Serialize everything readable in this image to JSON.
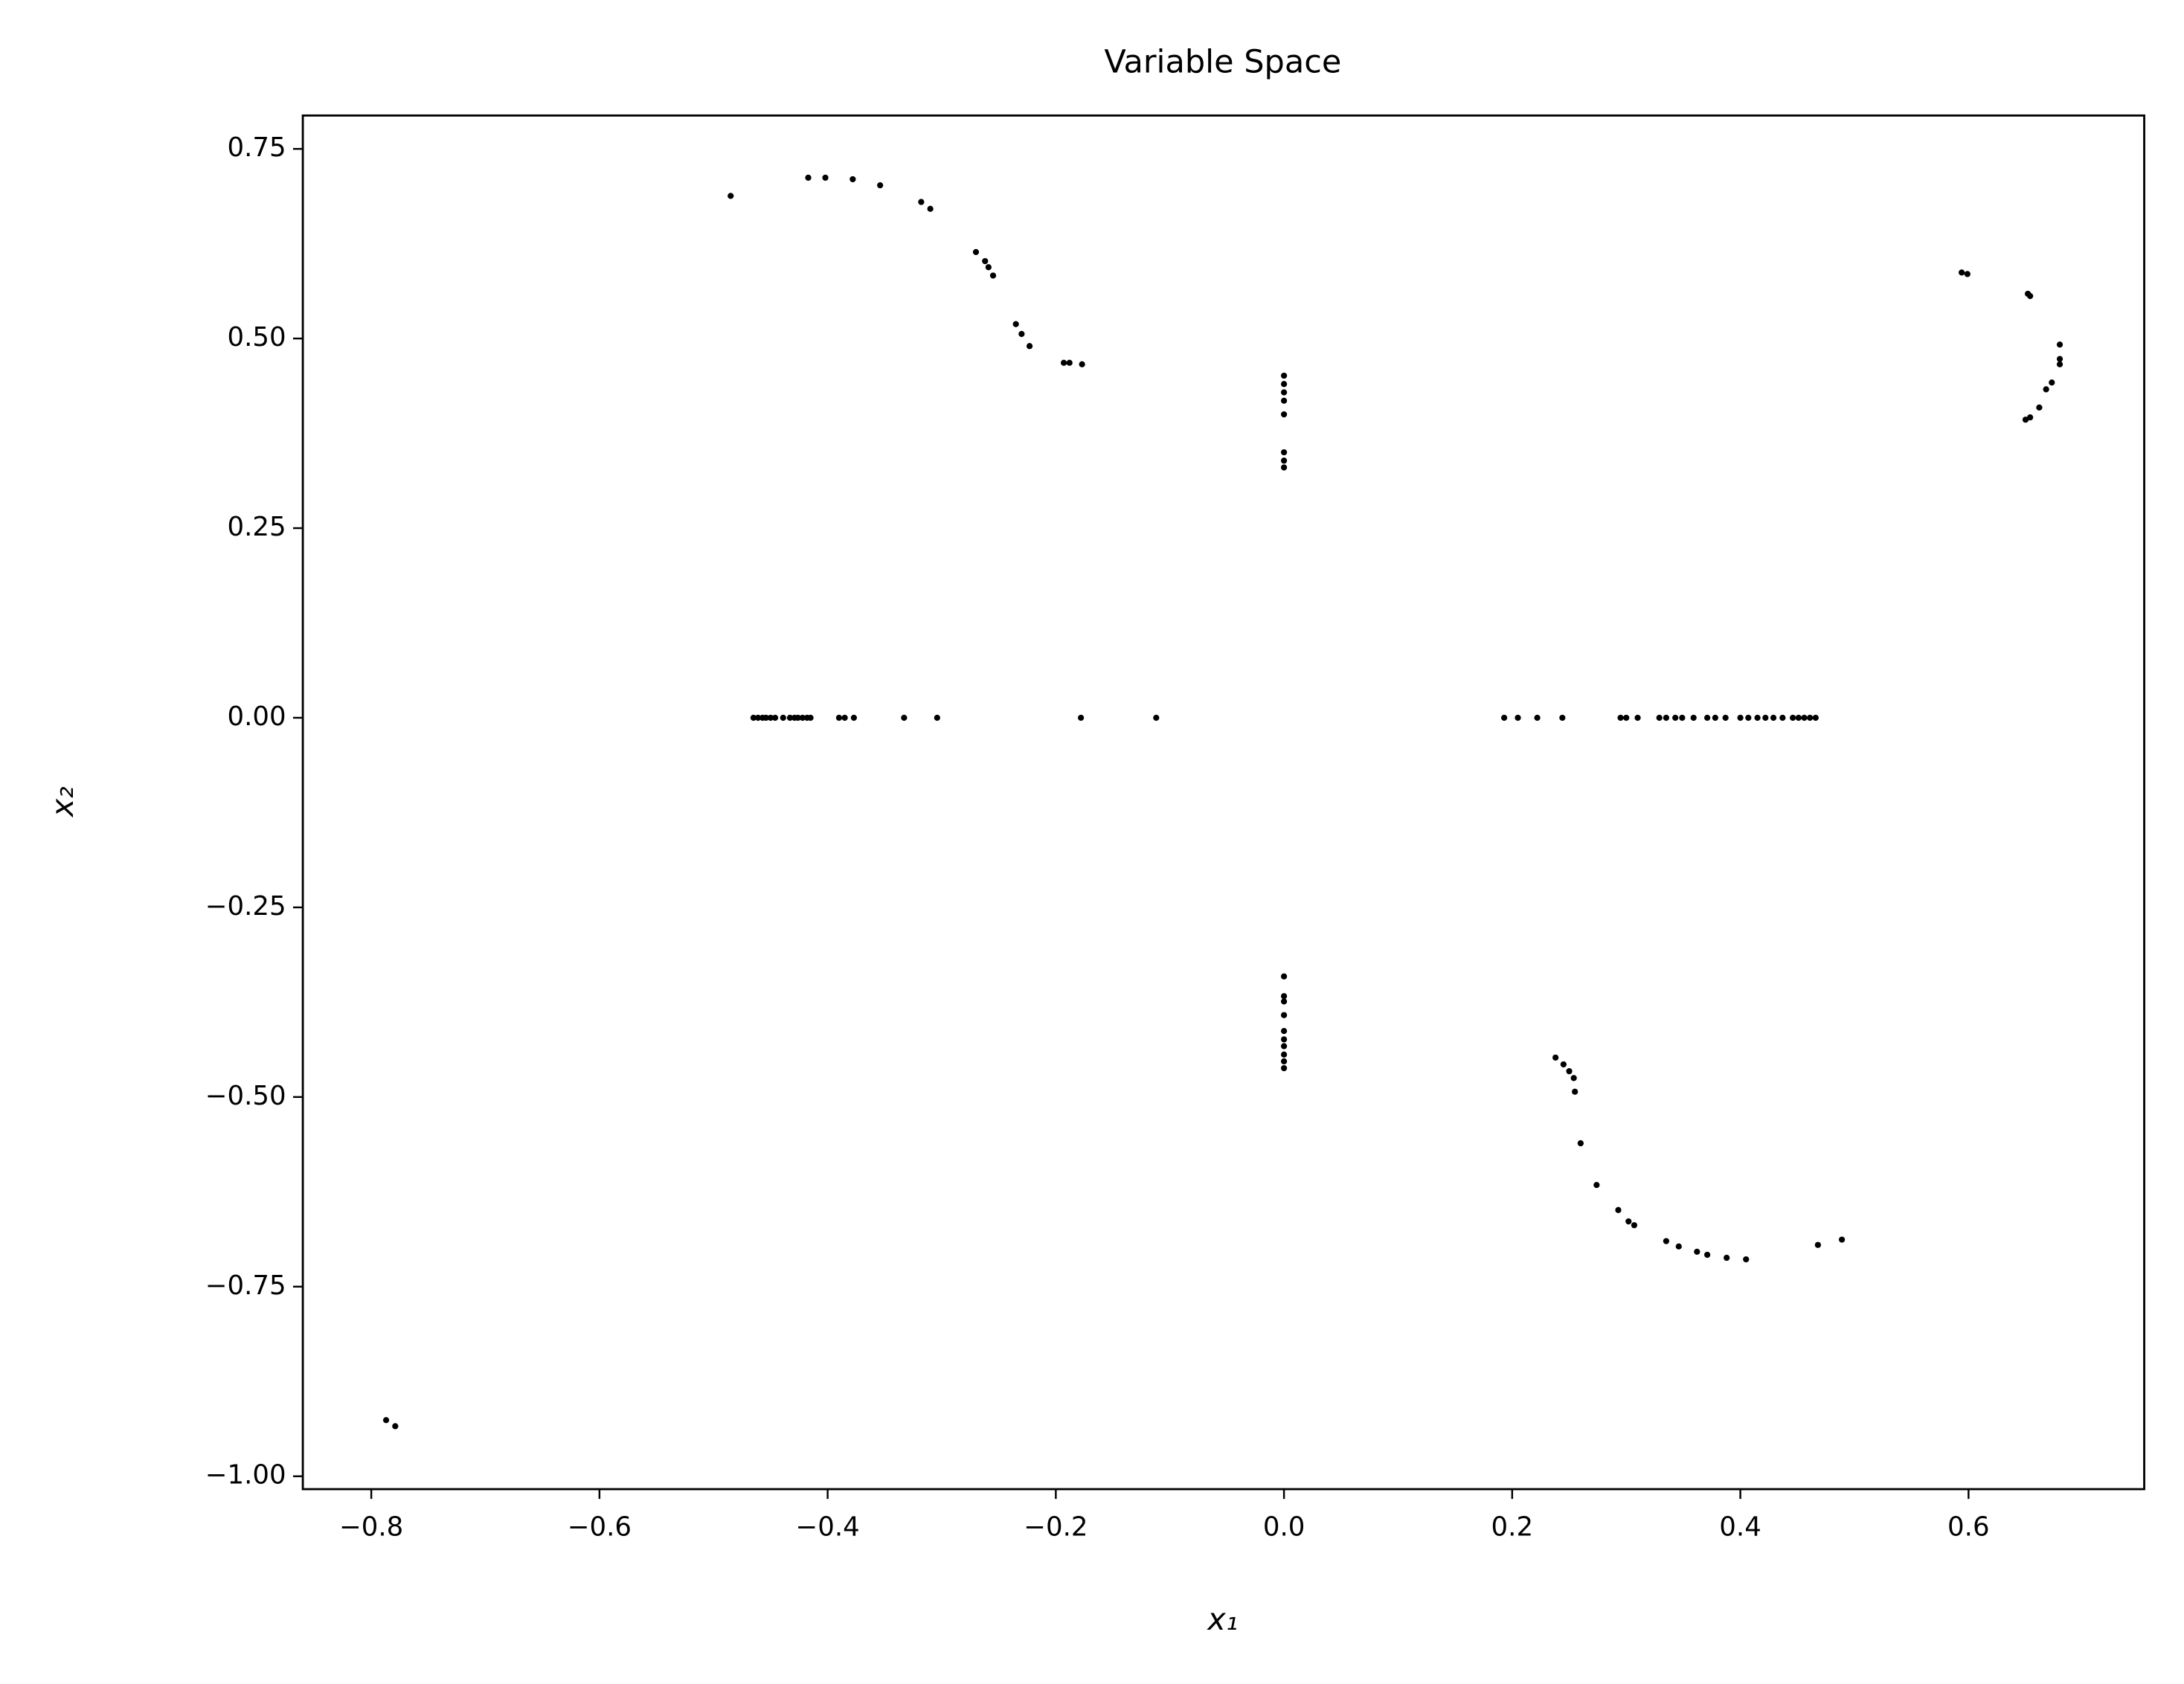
{
  "chart_data": {
    "type": "scatter",
    "title": "Variable Space",
    "xlabel": "x₁",
    "ylabel": "x₂",
    "xlim": [
      -0.86,
      0.754
    ],
    "ylim": [
      -1.017,
      0.794
    ],
    "xticks": [
      {
        "value": -0.8,
        "label": "−0.8"
      },
      {
        "value": -0.6,
        "label": "−0.6"
      },
      {
        "value": -0.4,
        "label": "−0.4"
      },
      {
        "value": -0.2,
        "label": "−0.2"
      },
      {
        "value": 0,
        "label": "0.0"
      },
      {
        "value": 0.2,
        "label": "0.2"
      },
      {
        "value": 0.4,
        "label": "0.4"
      },
      {
        "value": 0.6,
        "label": "0.6"
      }
    ],
    "yticks": [
      0.75,
      {
        "value": 0.5,
        "label": "0.50"
      },
      0.25,
      {
        "value": 0,
        "label": "0.00"
      },
      {
        "value": -0.25,
        "label": "−0.25"
      },
      {
        "value": -0.5,
        "label": "−0.50"
      },
      {
        "value": -0.75,
        "label": "−0.75"
      },
      {
        "value": -1,
        "label": "−1.00"
      }
    ],
    "grid": false,
    "series": [
      {
        "color": "#000000",
        "x": [
          -0.485,
          -0.417,
          -0.402,
          -0.378,
          -0.354,
          -0.318,
          -0.31,
          -0.27,
          -0.262,
          -0.259,
          -0.255,
          -0.235,
          -0.23,
          -0.223,
          -0.193,
          -0.188,
          -0.177,
          0,
          0,
          0,
          0,
          0,
          0,
          0,
          0,
          0.594,
          0.599,
          0.652,
          0.654,
          0.68,
          0.68,
          0.68,
          0.673,
          0.668,
          0.662,
          0.654,
          0.65,
          -0.465,
          -0.461,
          -0.457,
          -0.454,
          -0.45,
          -0.446,
          -0.439,
          -0.433,
          -0.429,
          -0.426,
          -0.422,
          -0.418,
          -0.415,
          -0.39,
          -0.385,
          -0.377,
          -0.333,
          -0.304,
          -0.178,
          -0.112,
          0.193,
          0.205,
          0.222,
          0.244,
          0.295,
          0.3,
          0.31,
          0.329,
          0.335,
          0.343,
          0.349,
          0.359,
          0.371,
          0.378,
          0.387,
          0.4,
          0.407,
          0.415,
          0.422,
          0.429,
          0.437,
          0.446,
          0.451,
          0.456,
          0.461,
          0.466,
          0,
          0,
          0,
          0,
          0,
          0,
          0,
          0,
          0,
          0,
          0.238,
          0.245,
          0.25,
          0.254,
          0.255,
          0.26,
          0.274,
          0.293,
          0.302,
          0.307,
          0.335,
          0.346,
          0.362,
          0.371,
          0.388,
          0.405,
          0.468,
          0.489,
          -0.787,
          -0.779
        ],
        "y": [
          0.688,
          0.712,
          0.712,
          0.71,
          0.702,
          0.68,
          0.671,
          0.614,
          0.602,
          0.594,
          0.583,
          0.519,
          0.506,
          0.49,
          0.468,
          0.468,
          0.466,
          0.451,
          0.44,
          0.429,
          0.418,
          0.4,
          0.35,
          0.339,
          0.33,
          0.587,
          0.585,
          0.559,
          0.556,
          0.492,
          0.473,
          0.466,
          0.442,
          0.433,
          0.409,
          0.396,
          0.393,
          0,
          0,
          0,
          0,
          0,
          0,
          0,
          0,
          0,
          0,
          0,
          0,
          0,
          0,
          0,
          0,
          0,
          0,
          0,
          0,
          0,
          0,
          0,
          0,
          0,
          0,
          0,
          0,
          0,
          0,
          0,
          0,
          0,
          0,
          0,
          0,
          0,
          0,
          0,
          0,
          0,
          0,
          0,
          0,
          0,
          0,
          -0.341,
          -0.367,
          -0.374,
          -0.392,
          -0.413,
          -0.424,
          -0.433,
          -0.444,
          -0.453,
          -0.462,
          -0.448,
          -0.457,
          -0.466,
          -0.475,
          -0.493,
          -0.561,
          -0.616,
          -0.649,
          -0.664,
          -0.669,
          -0.69,
          -0.697,
          -0.704,
          -0.708,
          -0.712,
          -0.714,
          -0.695,
          -0.688,
          -0.926,
          -0.934
        ]
      }
    ]
  }
}
